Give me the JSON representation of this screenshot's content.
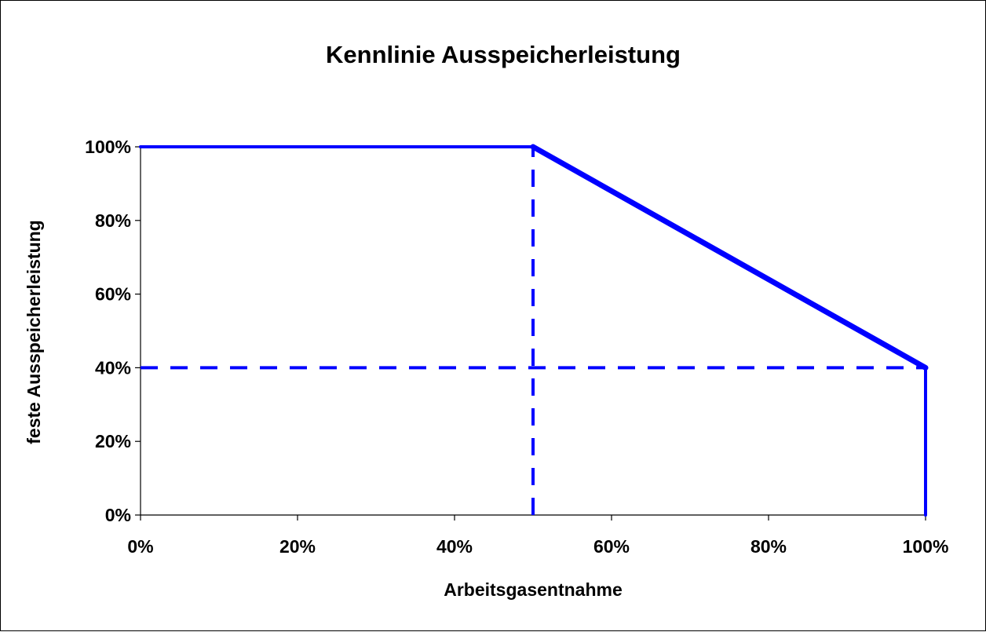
{
  "chart_data": {
    "type": "line",
    "title": "Kennlinie Ausspeicherleistung",
    "xlabel": "Arbeitsgasentnahme",
    "ylabel": "feste Ausspeicherleistung",
    "xlim": [
      0,
      100
    ],
    "ylim": [
      0,
      100
    ],
    "x_ticks": [
      "0%",
      "20%",
      "40%",
      "60%",
      "80%",
      "100%"
    ],
    "y_ticks": [
      "0%",
      "20%",
      "40%",
      "60%",
      "80%",
      "100%"
    ],
    "grid": false,
    "legend": "none",
    "series_color": "#0000FF",
    "series": [
      {
        "style": "solid",
        "x": [
          0,
          50,
          100,
          100
        ],
        "y": [
          100,
          100,
          40,
          0
        ]
      }
    ],
    "reference_lines": [
      {
        "style": "dashed",
        "x": [
          50,
          50
        ],
        "y": [
          0,
          100
        ]
      },
      {
        "style": "dashed",
        "x": [
          0,
          100
        ],
        "y": [
          40,
          40
        ]
      }
    ]
  }
}
